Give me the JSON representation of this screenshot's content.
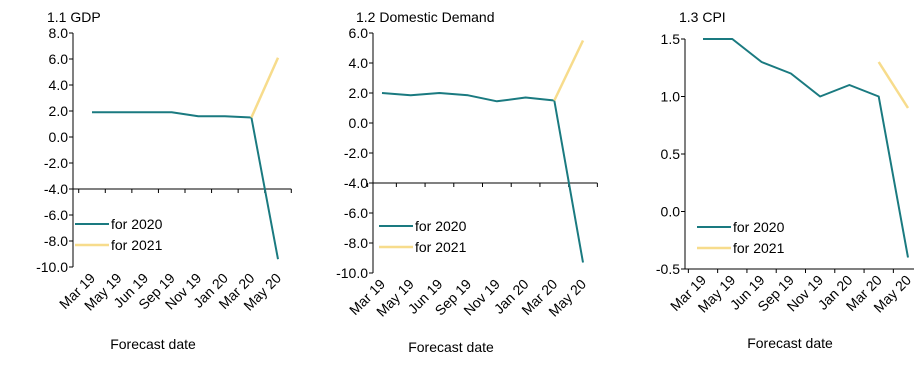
{
  "colors": {
    "for2020": "#1a7a80",
    "for2021": "#f7dc8c"
  },
  "chart_data": [
    {
      "type": "line",
      "title": "1.1 GDP",
      "xlabel": "Forecast date",
      "ylabel": "",
      "categories": [
        "Mar 19",
        "May 19",
        "Jun 19",
        "Sep 19",
        "Nov 19",
        "Jan 20",
        "Mar 20",
        "May 20"
      ],
      "ylim": [
        -10,
        8
      ],
      "yticks": [
        8.0,
        6.0,
        4.0,
        2.0,
        0.0,
        -2.0,
        -4.0,
        -6.0,
        -8.0,
        -10.0
      ],
      "ytick_labels": [
        "8.0",
        "6.0",
        "4.0",
        "2.0",
        "0.0",
        "-2.0",
        "-4.0",
        "-6.0",
        "-8.0",
        "-10.0"
      ],
      "category_axis_at": -4,
      "legend": "bottom-left",
      "grid": false,
      "series": [
        {
          "name": "for 2020",
          "values": [
            1.9,
            1.9,
            1.9,
            1.9,
            1.6,
            1.6,
            1.5,
            -9.4
          ]
        },
        {
          "name": "for 2021",
          "values": [
            null,
            null,
            null,
            null,
            null,
            null,
            1.5,
            6.1
          ]
        }
      ]
    },
    {
      "type": "line",
      "title": "1.2 Domestic Demand",
      "xlabel": "Forecast date",
      "ylabel": "",
      "categories": [
        "Mar 19",
        "May 19",
        "Jun 19",
        "Sep 19",
        "Nov 19",
        "Jan 20",
        "Mar 20",
        "May 20"
      ],
      "ylim": [
        -10,
        6
      ],
      "yticks": [
        6.0,
        4.0,
        2.0,
        0.0,
        -2.0,
        -4.0,
        -6.0,
        -8.0,
        -10.0
      ],
      "ytick_labels": [
        "6.0",
        "4.0",
        "2.0",
        "0.0",
        "-2.0",
        "-4.0",
        "-6.0",
        "-8.0",
        "-10.0"
      ],
      "category_axis_at": -4,
      "legend": "bottom-left",
      "grid": false,
      "series": [
        {
          "name": "for 2020",
          "values": [
            2.0,
            1.85,
            2.0,
            1.85,
            1.45,
            1.7,
            1.5,
            -9.3
          ]
        },
        {
          "name": "for 2021",
          "values": [
            null,
            null,
            null,
            null,
            null,
            null,
            1.5,
            5.5
          ]
        }
      ]
    },
    {
      "type": "line",
      "title": "1.3 CPI",
      "xlabel": "Forecast date",
      "ylabel": "",
      "categories": [
        "Mar 19",
        "May 19",
        "Jun 19",
        "Sep 19",
        "Nov 19",
        "Jan 20",
        "Mar 20",
        "May 20"
      ],
      "ylim": [
        -0.5,
        1.6
      ],
      "yticks": [
        1.5,
        1.0,
        0.5,
        0.0,
        -0.5
      ],
      "ytick_labels": [
        "1.5",
        "1.0",
        "0.5",
        "0.0",
        "-0.5"
      ],
      "category_axis_at": -0.5,
      "legend": "bottom-left",
      "grid": false,
      "series": [
        {
          "name": "for 2020",
          "values": [
            1.5,
            1.5,
            1.3,
            1.2,
            1.0,
            1.1,
            1.0,
            -0.4
          ]
        },
        {
          "name": "for 2021",
          "values": [
            null,
            null,
            null,
            null,
            null,
            null,
            1.3,
            0.9
          ]
        }
      ]
    }
  ]
}
